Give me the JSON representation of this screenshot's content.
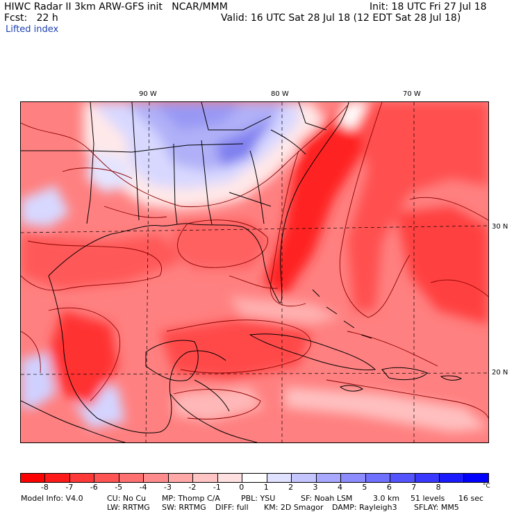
{
  "header": {
    "title": "HIWC Radar II 3km ARW-GFS init   NCAR/MMM",
    "init": "Init: 18 UTC Fri 27 Jul 18",
    "fcst": "Fcst:   22 h",
    "valid": "Valid: 16 UTC Sat 28 Jul 18 (12 EDT Sat 28 Jul 18)",
    "field": "Lifted index"
  },
  "map": {
    "longitude_labels": [
      "90 W",
      "80 W",
      "70 W"
    ],
    "latitude_labels": [
      "30 N",
      "20 N"
    ],
    "grid_line_color": "#000000",
    "border_color": "#000000",
    "contour_color": "#8b0000"
  },
  "colorbar": {
    "unit": "°C",
    "ticks": [
      "-8",
      "-7",
      "-6",
      "-5",
      "-4",
      "-3",
      "-2",
      "-1",
      "0",
      "1",
      "2",
      "3",
      "4",
      "5",
      "6",
      "7",
      "8"
    ],
    "colors": [
      "#ff0000",
      "#ff1a1a",
      "#ff3838",
      "#ff5454",
      "#ff7070",
      "#ff8c8c",
      "#ffa8a8",
      "#ffc4c4",
      "#ffe0e0",
      "#ffffff",
      "#e0e0ff",
      "#c4c4ff",
      "#a8a8ff",
      "#8c8cff",
      "#7070ff",
      "#5454ff",
      "#3838ff",
      "#1a1aff",
      "#0000ff"
    ]
  },
  "model_info": {
    "line1": [
      "Model Info: V4.0",
      "CU: No Cu",
      "MP: Thomp C/A",
      "PBL: YSU",
      "SF: Noah LSM",
      "3.0 km",
      "51 levels",
      "16 sec"
    ],
    "line2": [
      "LW: RRTMG",
      "SW: RRTMG",
      "DIFF: full",
      "KM: 2D Smagor",
      "DAMP: Rayleigh3",
      "SFLAY: MM5"
    ]
  }
}
